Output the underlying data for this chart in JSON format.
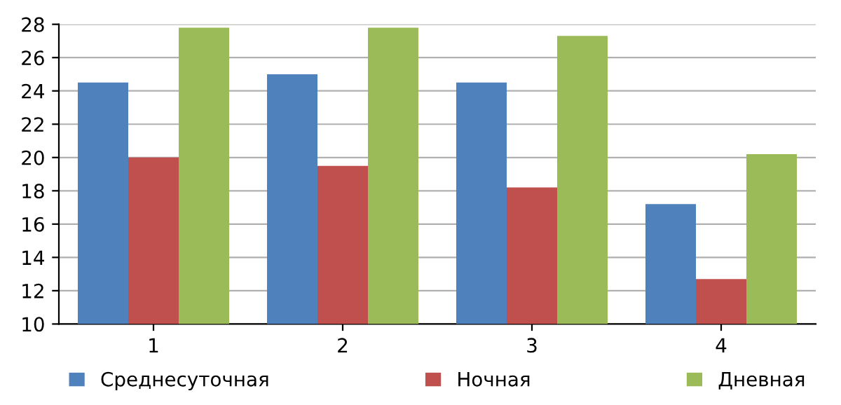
{
  "chart_data": {
    "type": "bar",
    "categories": [
      "1",
      "2",
      "3",
      "4"
    ],
    "series": [
      {
        "name": "Среднесуточная",
        "color": "#4f81bd",
        "values": [
          24.5,
          25,
          24.5,
          17.2
        ]
      },
      {
        "name": "Ночная",
        "color": "#c0504d",
        "values": [
          20,
          19.5,
          18.2,
          12.7
        ]
      },
      {
        "name": "Дневная",
        "color": "#9bbb59",
        "values": [
          27.8,
          27.8,
          27.3,
          20.2
        ]
      }
    ],
    "ylim": [
      10,
      28
    ],
    "yticks": [
      10,
      12,
      14,
      16,
      18,
      20,
      22,
      24,
      26,
      28
    ],
    "grid": "y",
    "legend": "bottom"
  }
}
